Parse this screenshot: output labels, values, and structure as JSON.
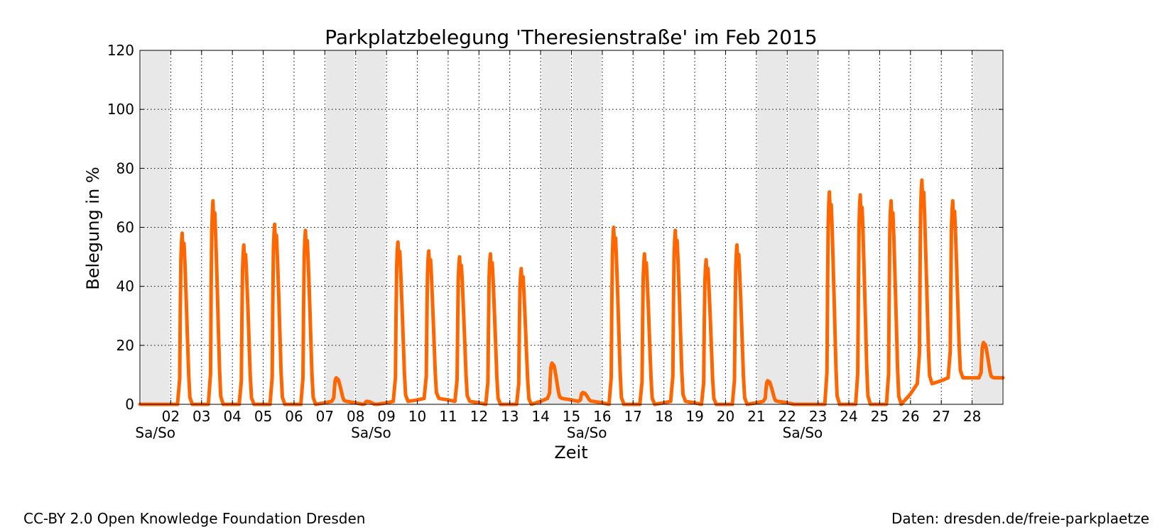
{
  "chart_data": {
    "type": "line",
    "title": "Parkplatzbelegung 'Theresienstraße' im Feb 2015",
    "xlabel": "Zeit",
    "ylabel": "Belegung in %",
    "ylim": [
      0,
      120
    ],
    "yticks": [
      0,
      20,
      40,
      60,
      80,
      100,
      120
    ],
    "xlim": [
      "2015-02-01",
      "2015-03-01"
    ],
    "xtick_labels": [
      "02",
      "03",
      "04",
      "05",
      "06",
      "07",
      "08",
      "09",
      "10",
      "11",
      "12",
      "13",
      "14",
      "15",
      "16",
      "17",
      "18",
      "19",
      "20",
      "21",
      "22",
      "23",
      "24",
      "25",
      "26",
      "27",
      "28"
    ],
    "weekend_label": "Sa/So",
    "weekend_label_days": [
      "01",
      "08",
      "15",
      "22"
    ],
    "weekends": [
      [
        "2015-02-01",
        "2015-02-02"
      ],
      [
        "2015-02-07",
        "2015-02-09"
      ],
      [
        "2015-02-14",
        "2015-02-16"
      ],
      [
        "2015-02-21",
        "2015-02-23"
      ],
      [
        "2015-02-28",
        "2015-03-01"
      ]
    ],
    "grid": true,
    "line_color": "#ff6600",
    "weekend_color": "#e8e8e8",
    "series": [
      {
        "days": [
          {
            "date": "2015-02-01",
            "peak": 0,
            "base": 0
          },
          {
            "date": "2015-02-02",
            "peak": 58,
            "base": 0
          },
          {
            "date": "2015-02-03",
            "peak": 69,
            "base": 0
          },
          {
            "date": "2015-02-04",
            "peak": 54,
            "base": 0
          },
          {
            "date": "2015-02-05",
            "peak": 61,
            "base": 0
          },
          {
            "date": "2015-02-06",
            "peak": 59,
            "base": 0
          },
          {
            "date": "2015-02-07",
            "peak": 9,
            "base": 1
          },
          {
            "date": "2015-02-08",
            "peak": 1,
            "base": 0
          },
          {
            "date": "2015-02-09",
            "peak": 55,
            "base": 1
          },
          {
            "date": "2015-02-10",
            "peak": 52,
            "base": 2
          },
          {
            "date": "2015-02-11",
            "peak": 50,
            "base": 1
          },
          {
            "date": "2015-02-12",
            "peak": 51,
            "base": 0
          },
          {
            "date": "2015-02-13",
            "peak": 46,
            "base": 0
          },
          {
            "date": "2015-02-14",
            "peak": 14,
            "base": 2
          },
          {
            "date": "2015-02-15",
            "peak": 4,
            "base": 1
          },
          {
            "date": "2015-02-16",
            "peak": 60,
            "base": 0
          },
          {
            "date": "2015-02-17",
            "peak": 51,
            "base": 0
          },
          {
            "date": "2015-02-18",
            "peak": 59,
            "base": 1
          },
          {
            "date": "2015-02-19",
            "peak": 49,
            "base": 0
          },
          {
            "date": "2015-02-20",
            "peak": 54,
            "base": 0
          },
          {
            "date": "2015-02-21",
            "peak": 8,
            "base": 1
          },
          {
            "date": "2015-02-22",
            "peak": 0,
            "base": 0
          },
          {
            "date": "2015-02-23",
            "peak": 72,
            "base": 0
          },
          {
            "date": "2015-02-24",
            "peak": 71,
            "base": 0
          },
          {
            "date": "2015-02-25",
            "peak": 69,
            "base": 0
          },
          {
            "date": "2015-02-26",
            "peak": 76,
            "base": 7
          },
          {
            "date": "2015-02-27",
            "peak": 69,
            "base": 9
          },
          {
            "date": "2015-02-28",
            "peak": 21,
            "base": 9
          }
        ]
      }
    ]
  },
  "footer": {
    "license": "CC-BY 2.0 Open Knowledge Foundation Dresden",
    "source": "Daten: dresden.de/freie-parkplaetze"
  }
}
